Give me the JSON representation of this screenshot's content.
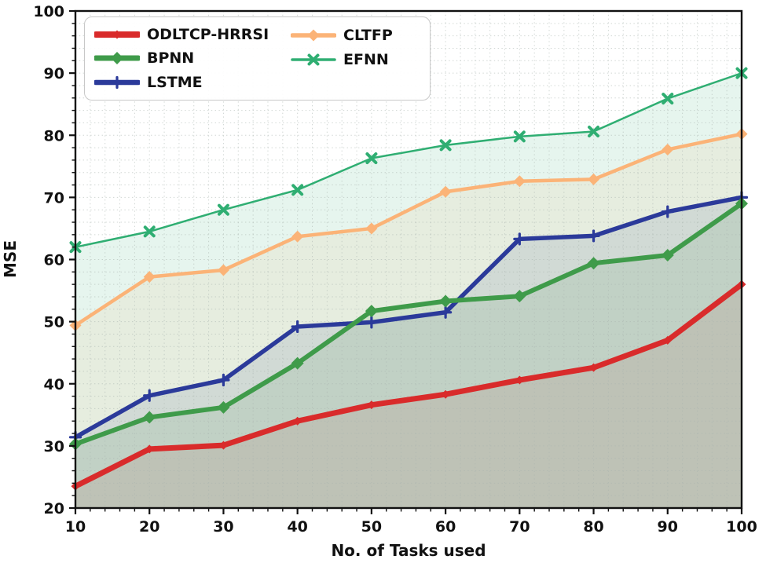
{
  "chart_data": {
    "type": "line",
    "title": "",
    "xlabel": "No. of Tasks used",
    "ylabel": "MSE",
    "xlim": [
      10,
      100
    ],
    "ylim": [
      20,
      100
    ],
    "x_major_ticks": [
      10,
      20,
      30,
      40,
      50,
      60,
      70,
      80,
      90,
      100
    ],
    "y_major_ticks": [
      20,
      30,
      40,
      50,
      60,
      70,
      80,
      90,
      100
    ],
    "minor_tick_step": 2,
    "grid": {
      "style": "dotted",
      "step": 2,
      "color": "#aab4ae"
    },
    "fill_alpha": 0.12,
    "legend_position": "upper-left",
    "legend_columns": [
      [
        0,
        1,
        2
      ],
      [
        3,
        4
      ]
    ],
    "x": [
      10,
      20,
      30,
      40,
      50,
      60,
      70,
      80,
      90,
      100
    ],
    "series": [
      {
        "name": "ODLTCP-HRRSI",
        "color": "#d92b2b",
        "marker": "diamond",
        "marker_size": 5.5,
        "line_width": 7,
        "values": [
          23.5,
          29.5,
          30.1,
          34.0,
          36.6,
          38.3,
          40.6,
          42.6,
          47.0,
          56.0
        ]
      },
      {
        "name": "BPNN",
        "color": "#3f9b4a",
        "marker": "diamond",
        "marker_size": 8,
        "line_width": 6,
        "values": [
          30.3,
          34.6,
          36.2,
          43.3,
          51.7,
          53.3,
          54.1,
          59.4,
          60.7,
          69.0
        ]
      },
      {
        "name": "LSTME",
        "color": "#2b3a9a",
        "marker": "plus",
        "marker_size": 6.5,
        "line_width": 5.5,
        "values": [
          31.4,
          38.1,
          40.6,
          49.2,
          49.9,
          51.5,
          63.3,
          63.8,
          67.7,
          70.0
        ]
      },
      {
        "name": "CLTFP",
        "color": "#fbb377",
        "marker": "diamond",
        "marker_size": 7.5,
        "line_width": 4.5,
        "values": [
          49.4,
          57.2,
          58.3,
          63.7,
          65.0,
          70.9,
          72.6,
          72.9,
          77.7,
          80.2
        ]
      },
      {
        "name": "EFNN",
        "color": "#2fae72",
        "marker": "x",
        "marker_size": 5.5,
        "line_width": 2.5,
        "values": [
          62.0,
          64.5,
          68.0,
          71.2,
          76.3,
          78.4,
          79.8,
          80.6,
          85.9,
          90.0
        ]
      }
    ],
    "draw_order": [
      0,
      2,
      1,
      3,
      4
    ]
  }
}
